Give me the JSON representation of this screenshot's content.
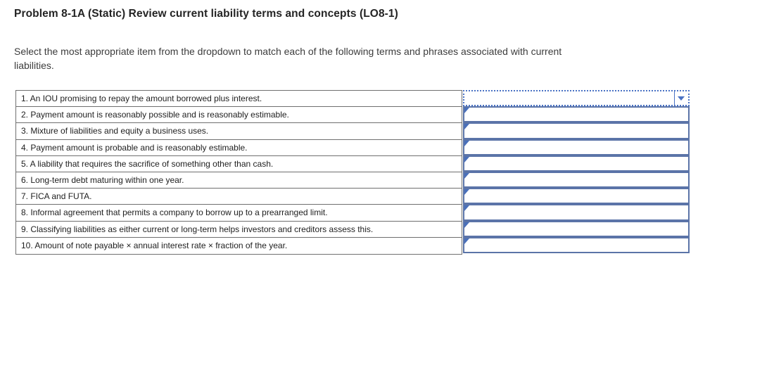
{
  "page": {
    "title": "Problem 8-1A (Static) Review current liability terms and concepts (LO8-1)",
    "instructions_lines": [
      "Select the most appropriate item from the dropdown to match each of the following terms and phrases associated with current",
      "liabilities."
    ]
  },
  "colors": {
    "answer_cell_border": "#5b74a8",
    "focused_dropdown_border": "#4a72c4",
    "corner_marker": "#4a70ba",
    "question_grid_border": "#6f6f6f",
    "title_text": "#242424",
    "body_text": "#3c3c3c"
  },
  "icons": {
    "dropdown_arrow": "down-triangle",
    "corner_marker": "top-left-triangle"
  },
  "table": {
    "rows": [
      {
        "label": "1. An IOU promising to repay the amount borrowed plus interest.",
        "answer": "",
        "state": "focused"
      },
      {
        "label": "2. Payment amount is reasonably possible and is reasonably estimable.",
        "answer": "",
        "state": "default"
      },
      {
        "label": "3. Mixture of liabilities and equity a business uses.",
        "answer": "",
        "state": "default"
      },
      {
        "label": "4. Payment amount is probable and is reasonably estimable.",
        "answer": "",
        "state": "default"
      },
      {
        "label": "5. A liability that requires the sacrifice of something other than cash.",
        "answer": "",
        "state": "default"
      },
      {
        "label": "6. Long-term debt maturing within one year.",
        "answer": "",
        "state": "default"
      },
      {
        "label": "7. FICA and FUTA.",
        "answer": "",
        "state": "default"
      },
      {
        "label": "8. Informal agreement that permits a company to borrow up to a prearranged limit.",
        "answer": "",
        "state": "default"
      },
      {
        "label": "9. Classifying liabilities as either current or long-term helps investors and creditors assess this.",
        "answer": "",
        "state": "default"
      },
      {
        "label": "10. Amount of note payable × annual interest rate × fraction of the year.",
        "answer": "",
        "state": "default"
      }
    ]
  }
}
